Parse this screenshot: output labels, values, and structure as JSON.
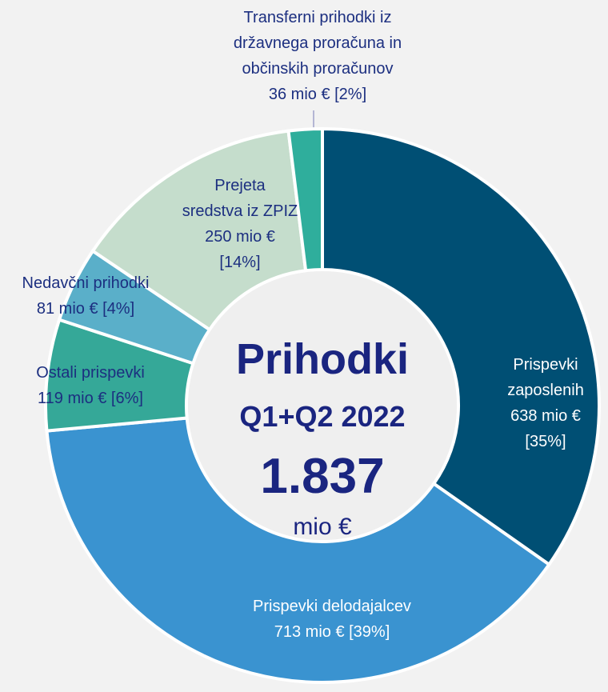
{
  "chart_data": {
    "type": "donut",
    "center_title": "Prihodki",
    "center_subtitle": "Q1+Q2 2022",
    "total": 1837,
    "total_label": "1.837",
    "total_unit": "mio €",
    "categories": [
      "Prispevki\nzaposlenih",
      "Prispevki delodajalcev",
      "Ostali prispevki",
      "Nedavčni prihodki",
      "Prejeta\nsredstva iz ZPIZ",
      "Transferni prihodki iz\ndržavnega proračuna in\nobčinskih proračunov"
    ],
    "values": [
      638,
      713,
      119,
      81,
      250,
      36
    ],
    "value_labels": [
      "638 mio €\n[35%]",
      "713 mio € [39%]",
      "119 mio € [6%]",
      "81 mio € [4%]",
      "250 mio €\n[14%]",
      "36 mio € [2%]"
    ],
    "colors": [
      "#004f74",
      "#3a93d0",
      "#35a898",
      "#5aafc9",
      "#c5ddcc",
      "#2fae9c"
    ]
  }
}
